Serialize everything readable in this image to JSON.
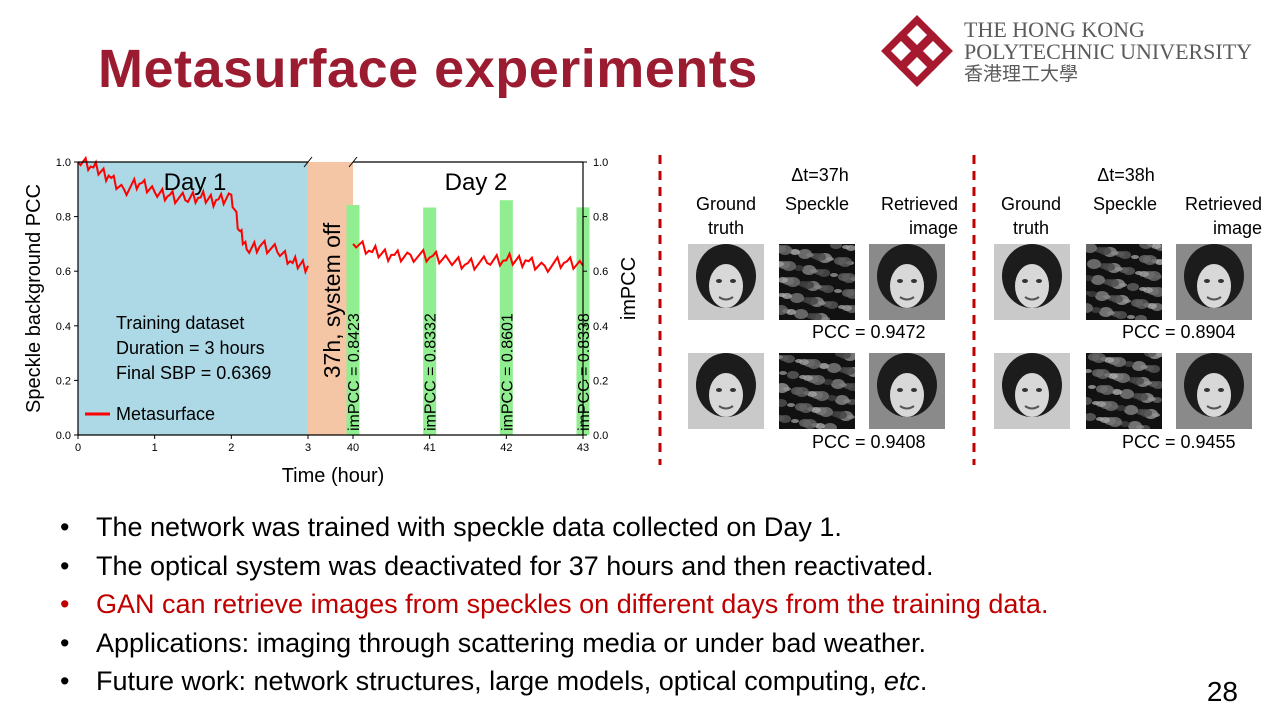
{
  "title": "Metasurface experiments",
  "logo": {
    "line1": "THE HONG KONG",
    "line2": "POLYTECHNIC UNIVERSITY",
    "line3": "香港理工大學",
    "colors": {
      "emblem": "#a6192e",
      "text": "#5b5b5b"
    }
  },
  "slide_number": "28",
  "chart_data": {
    "type": "line",
    "ylabel_left": "Speckle background PCC",
    "ylabel_right": "imPCC",
    "xlabel": "Time (hour)",
    "xticks": [
      "0",
      "1",
      "2",
      "3",
      "40",
      "41",
      "42",
      "43"
    ],
    "yticks_left": [
      "0.0",
      "0.2",
      "0.4",
      "0.6",
      "0.8",
      "1.0"
    ],
    "yticks_right": [
      "0.0",
      "0.2",
      "0.4",
      "0.6",
      "0.8",
      "1.0"
    ],
    "ylim": [
      0,
      1
    ],
    "day1_label": "Day 1",
    "day2_label": "Day 2",
    "gap_label": "37h, system off",
    "info_lines": [
      "Training dataset",
      "Duration = 3 hours",
      "Final SBP = 0.6369"
    ],
    "legend": "Metasurface",
    "series_color": "#ff0000",
    "day1_bg": "#add8e6",
    "gap_bg": "#f5c6a5",
    "bar_color": "#90ee90",
    "day1_series": {
      "x": [
        0,
        0.2,
        0.4,
        0.6,
        0.8,
        1.0,
        1.2,
        1.4,
        1.6,
        1.8,
        2.0,
        2.1,
        2.2,
        2.4,
        2.6,
        2.8,
        3.0
      ],
      "y": [
        1.0,
        0.98,
        0.95,
        0.9,
        0.92,
        0.89,
        0.88,
        0.86,
        0.87,
        0.86,
        0.88,
        0.75,
        0.68,
        0.7,
        0.67,
        0.63,
        0.62
      ]
    },
    "day2_series": {
      "x": [
        40.0,
        40.25,
        40.5,
        40.75,
        41.0,
        41.25,
        41.5,
        41.75,
        42.0,
        42.25,
        42.5,
        42.75,
        43.0
      ],
      "y": [
        0.7,
        0.67,
        0.66,
        0.66,
        0.65,
        0.64,
        0.63,
        0.63,
        0.64,
        0.64,
        0.62,
        0.63,
        0.62
      ]
    },
    "bars": [
      {
        "x": 40,
        "value": 0.8423,
        "label": "imPCC = 0.8423"
      },
      {
        "x": 41,
        "value": 0.8332,
        "label": "imPCC = 0.8332"
      },
      {
        "x": 42,
        "value": 0.8601,
        "label": "imPCC = 0.8601"
      },
      {
        "x": 43,
        "value": 0.8338,
        "label": "imPCC = 0.8338"
      }
    ]
  },
  "panels": [
    {
      "dt": "Δt=37h",
      "col_headers": [
        "Ground\ntruth",
        "Speckle",
        "Retrieved\nimage"
      ],
      "rows": [
        {
          "pcc": "PCC = 0.9472"
        },
        {
          "pcc": "PCC = 0.9408"
        }
      ]
    },
    {
      "dt": "Δt=38h",
      "col_headers": [
        "Ground\ntruth",
        "Speckle",
        "Retrieved\nimage"
      ],
      "rows": [
        {
          "pcc": "PCC = 0.8904"
        },
        {
          "pcc": "PCC = 0.9455"
        }
      ]
    }
  ],
  "bullets": [
    {
      "text": "The network was trained with speckle data collected on Day 1.",
      "highlight": false
    },
    {
      "text": "The optical system was deactivated for 37 hours and then reactivated.",
      "highlight": false
    },
    {
      "text": "GAN can retrieve images from speckles on different days from the training data.",
      "highlight": true
    },
    {
      "text": "Applications: imaging through scattering media or under bad weather.",
      "highlight": false
    },
    {
      "text_before": "Future work: network structures, large models, optical computing, ",
      "text_italic": "etc",
      "text_after": ".",
      "highlight": false
    }
  ]
}
